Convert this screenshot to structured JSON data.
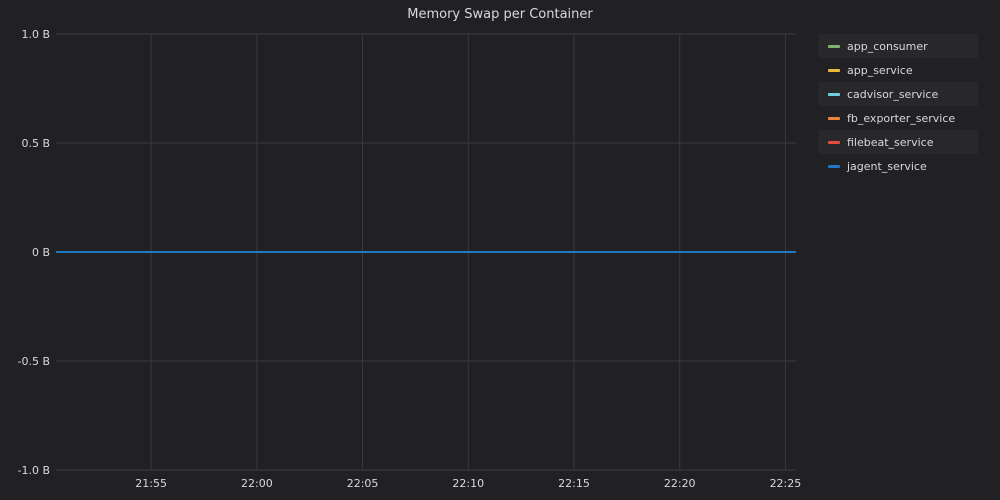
{
  "chart_data": {
    "type": "line",
    "title": "Memory Swap per Container",
    "xlabel": "",
    "ylabel": "",
    "x_ticks": [
      "21:55",
      "22:00",
      "22:05",
      "22:10",
      "22:15",
      "22:20",
      "22:25"
    ],
    "y_ticks": [
      "1.0 B",
      "0.5 B",
      "0 B",
      "-0.5 B",
      "-1.0 B"
    ],
    "ylim": [
      -1.0,
      1.0
    ],
    "xlim": [
      "21:50:30",
      "22:25:30"
    ],
    "grid": true,
    "legend_position": "right",
    "x": [
      "21:50:30",
      "22:25:30"
    ],
    "series": [
      {
        "name": "app_consumer",
        "color": "#7eb26d",
        "values": [
          0,
          0
        ]
      },
      {
        "name": "app_service",
        "color": "#eab839",
        "values": [
          0,
          0
        ]
      },
      {
        "name": "cadvisor_service",
        "color": "#6ed0e0",
        "values": [
          0,
          0
        ]
      },
      {
        "name": "fb_exporter_service",
        "color": "#ef843c",
        "values": [
          0,
          0
        ]
      },
      {
        "name": "filebeat_service",
        "color": "#e24d42",
        "values": [
          0,
          0
        ]
      },
      {
        "name": "jagent_service",
        "color": "#1f78c1",
        "values": [
          0,
          0
        ]
      }
    ]
  }
}
